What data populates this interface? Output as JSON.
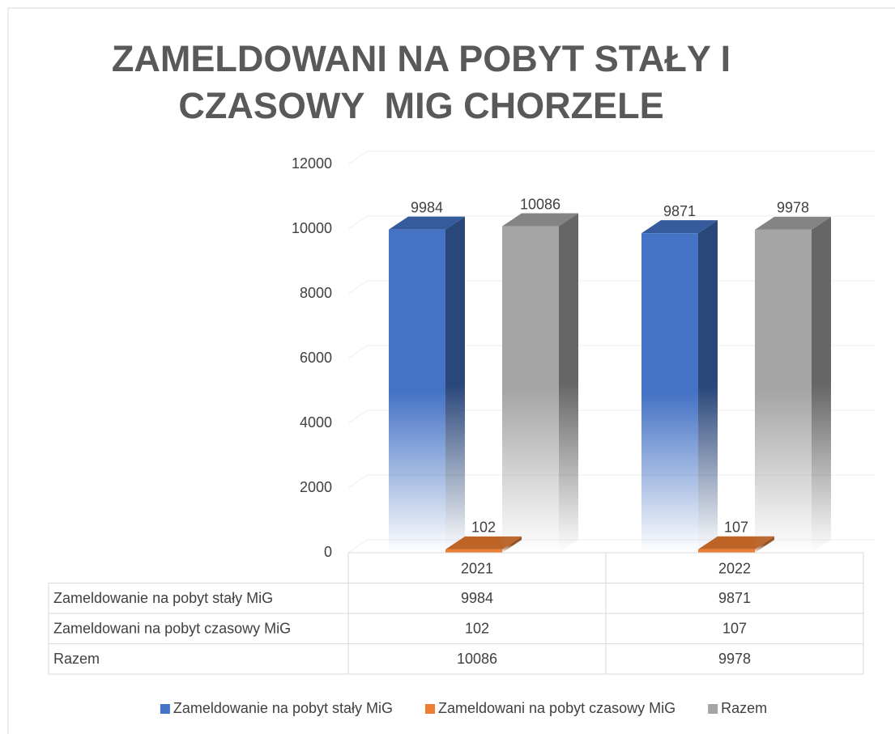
{
  "chart_data": {
    "type": "bar3d",
    "title": "ZAMELDOWANI NA POBYT STAŁY I CZASOWY  MIG CHORZELE",
    "categories": [
      "2021",
      "2022"
    ],
    "series": [
      {
        "name": "Zameldowanie na pobyt stały MiG",
        "color": "#4472c4",
        "values": [
          9984,
          9871
        ]
      },
      {
        "name": "Zameldowani na pobyt czasowy MiG",
        "color": "#ed7d31",
        "values": [
          102,
          107
        ]
      },
      {
        "name": "Razem",
        "color": "#a5a5a5",
        "values": [
          10086,
          9978
        ]
      }
    ],
    "ylim": [
      0,
      12000
    ],
    "yticks": [
      0,
      2000,
      4000,
      6000,
      8000,
      10000,
      12000
    ],
    "grid": true,
    "data_table": true,
    "legend": "bottom"
  }
}
